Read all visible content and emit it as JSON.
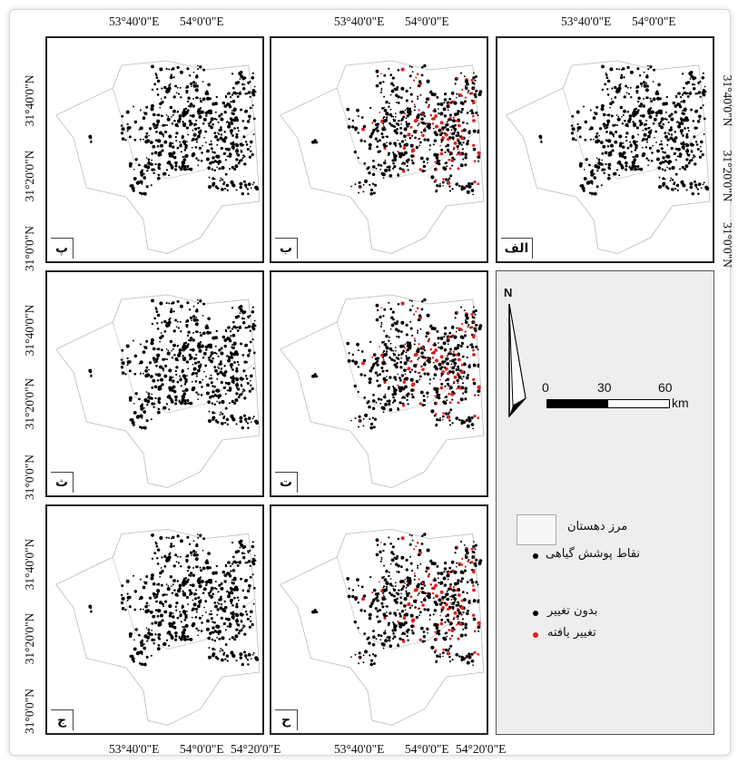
{
  "colors": {
    "unchanged": "#000000",
    "changed": "#e02020",
    "boundary": "#bbbbbb",
    "legend_bg": "#eeeeee"
  },
  "panels": [
    {
      "id": "alef",
      "label": "الف",
      "changes": false
    },
    {
      "id": "be",
      "label": "ب",
      "changes": true
    },
    {
      "id": "pe",
      "label": "پ",
      "changes": false
    },
    {
      "id": "te",
      "label": "ت",
      "changes": true
    },
    {
      "id": "se",
      "label": "ث",
      "changes": false
    },
    {
      "id": "che",
      "label": "ح",
      "changes": true
    },
    {
      "id": "jim",
      "label": "ج",
      "changes": false
    }
  ],
  "axes": {
    "top_ticks": [
      "53°40'0\"E",
      "54°0'0\"E"
    ],
    "bottom_ticks": [
      "53°40'0\"E",
      "54°0'0\"E",
      "54°20'0\"E"
    ],
    "lat_ticks": [
      "31°40'0\"N",
      "31°20'0\"N",
      "31°0'0\"N"
    ]
  },
  "north_arrow": {
    "label": "N"
  },
  "scale_bar": {
    "ticks": [
      "0",
      "30",
      "60"
    ],
    "unit": "km"
  },
  "legend": {
    "boundary": "مرز دهستان",
    "vegetation_points": "نقاط پوشش گیاهی",
    "unchanged": "بدون تغییر",
    "changed": "تغییر یافته"
  }
}
